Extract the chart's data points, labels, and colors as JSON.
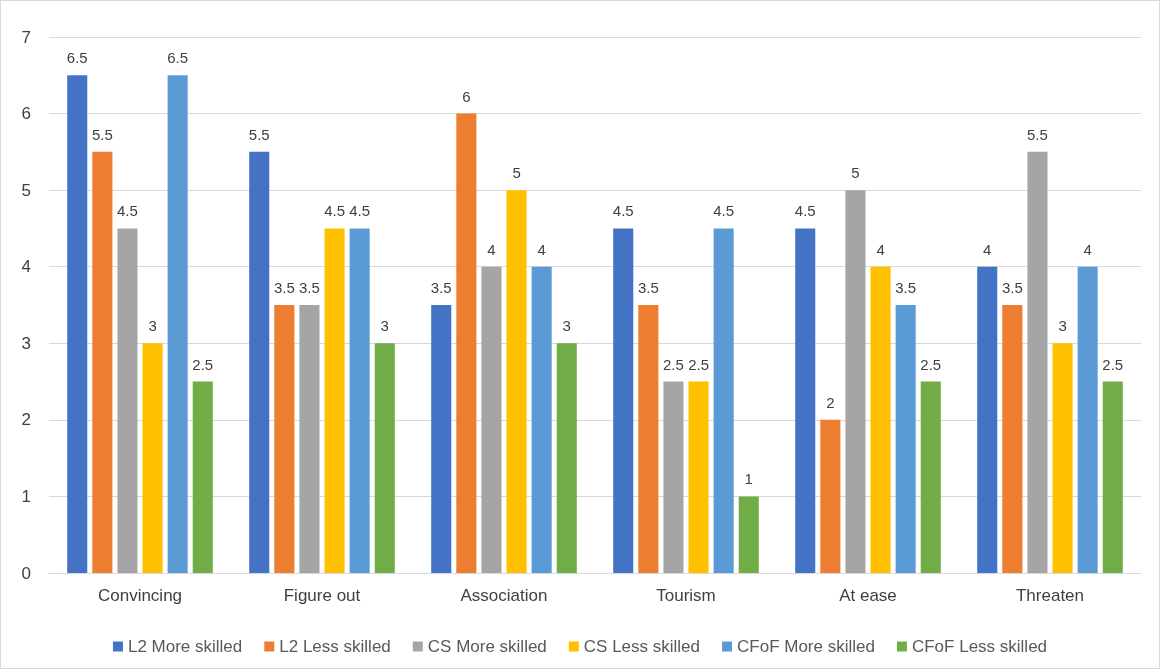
{
  "chart_data": {
    "type": "bar",
    "categories": [
      "Convincing",
      "Figure out",
      "Association",
      "Tourism",
      "At ease",
      "Threaten"
    ],
    "series": [
      {
        "name": "L2 More skilled",
        "color": "#4472c4",
        "values": [
          6.5,
          5.5,
          3.5,
          4.5,
          4.5,
          4
        ]
      },
      {
        "name": "L2 Less skilled",
        "color": "#ed7d31",
        "values": [
          5.5,
          3.5,
          6,
          3.5,
          2,
          3.5
        ]
      },
      {
        "name": "CS More skilled",
        "color": "#a5a5a5",
        "values": [
          4.5,
          3.5,
          4,
          2.5,
          5,
          5.5
        ]
      },
      {
        "name": "CS Less skilled",
        "color": "#ffc000",
        "values": [
          3,
          4.5,
          5,
          2.5,
          4,
          3
        ]
      },
      {
        "name": "CFoF More skilled",
        "color": "#5b9bd5",
        "values": [
          6.5,
          4.5,
          4,
          4.5,
          3.5,
          4
        ]
      },
      {
        "name": "CFoF Less skilled",
        "color": "#70ad47",
        "values": [
          2.5,
          3,
          3,
          1,
          2.5,
          2.5
        ]
      }
    ],
    "ylim": [
      0,
      7
    ],
    "yticks": [
      0,
      1,
      2,
      3,
      4,
      5,
      6,
      7
    ],
    "grid": "y",
    "legend": "bottom",
    "data_labels": true
  }
}
